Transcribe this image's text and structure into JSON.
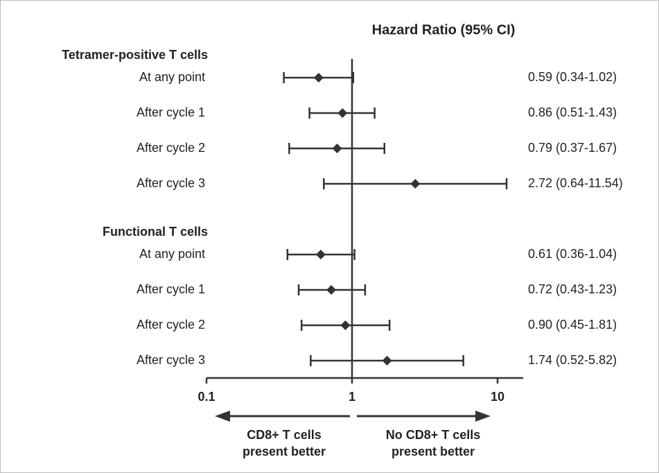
{
  "chart_data": {
    "type": "forest",
    "title": "Hazard Ratio (95% CI)",
    "log_scale": true,
    "xlim": [
      0.1,
      15
    ],
    "xticks": [
      0.1,
      1,
      10
    ],
    "reference_line": 1,
    "color": "#333333",
    "groups": [
      {
        "name": "Tetramer-positive T cells",
        "categories": [
          "At any point",
          "After cycle 1",
          "After cycle 2",
          "After cycle 3"
        ],
        "values": [
          0.59,
          0.86,
          0.79,
          2.72
        ],
        "lower": [
          0.34,
          0.51,
          0.37,
          0.64
        ],
        "upper": [
          1.02,
          1.43,
          1.67,
          11.54
        ],
        "value_labels": [
          "0.59 (0.34-1.02)",
          "0.86 (0.51-1.43)",
          "0.79 (0.37-1.67)",
          "2.72 (0.64-11.54)"
        ]
      },
      {
        "name": "Functional T cells",
        "categories": [
          "At any point",
          "After cycle 1",
          "After cycle 2",
          "After cycle 3"
        ],
        "values": [
          0.61,
          0.72,
          0.9,
          1.74
        ],
        "lower": [
          0.36,
          0.43,
          0.45,
          0.52
        ],
        "upper": [
          1.04,
          1.23,
          1.81,
          5.82
        ],
        "value_labels": [
          "0.61 (0.36-1.04)",
          "0.72 (0.43-1.23)",
          "0.90 (0.45-1.81)",
          "1.74 (0.52-5.82)"
        ]
      }
    ],
    "annotations": [
      {
        "lines": [
          "CD8+ T cells",
          "present better"
        ]
      },
      {
        "lines": [
          "No CD8+ T cells",
          "present better"
        ]
      }
    ]
  }
}
